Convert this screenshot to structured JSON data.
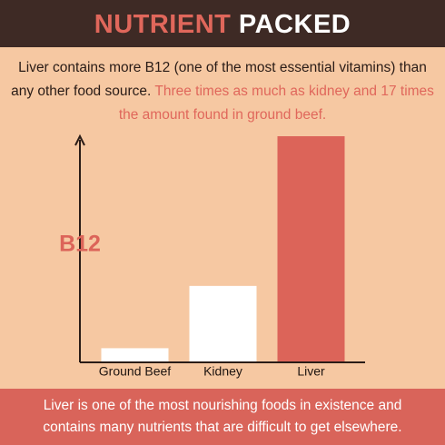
{
  "chart_data": {
    "type": "bar",
    "title_words": [
      "NUTRIENT",
      "PACKED"
    ],
    "description": "Liver contains more B12 (one of the most essential vitamins) than any other food source.",
    "highlight": "Three times as much as kidney and 17 times the amount found in ground beef.",
    "ylabel": "B12",
    "categories": [
      "Ground Beef",
      "Kidney",
      "Liver"
    ],
    "values": [
      1,
      5.7,
      17
    ],
    "colors": [
      "#ffffff",
      "#ffffff",
      "#dc6459"
    ],
    "ylim": [
      0,
      17
    ],
    "footer": "Liver is one of the most nourishing foods in existence and contains many nutrients that are difficult to get elsewhere."
  }
}
